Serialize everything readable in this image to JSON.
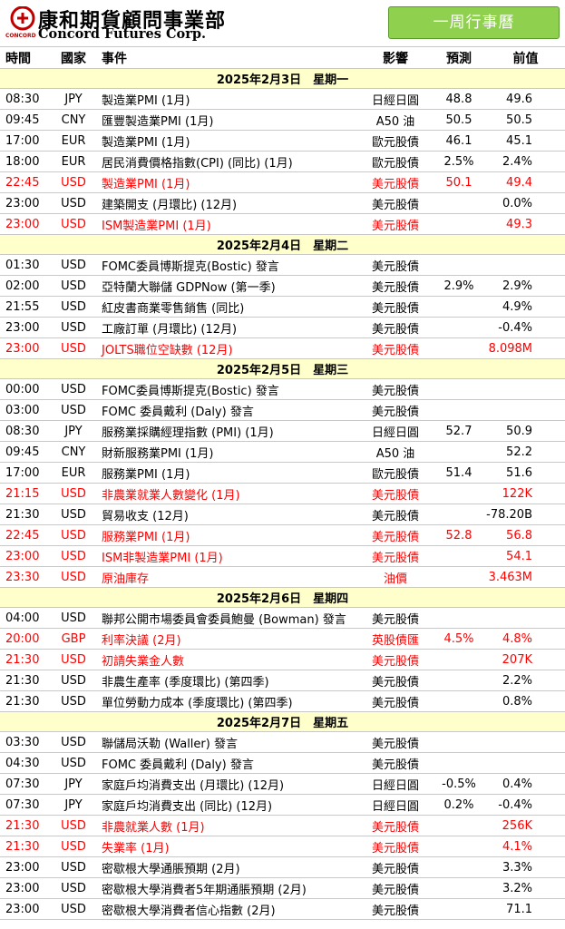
{
  "header": {
    "logo_cn": "康和期貨顧問事業部",
    "logo_en": "Concord Futures Corp.",
    "logo_small": "CONCORD",
    "banner": "一周行事曆"
  },
  "columns": [
    "時間",
    "國家",
    "事件",
    "影響",
    "預測",
    "前值"
  ],
  "days": [
    {
      "date": "2025年2月3日　星期一",
      "rows": [
        {
          "time": "08:30",
          "cur": "JPY",
          "event": "製造業PMI (1月)",
          "impact": "日經日圓",
          "fc": "48.8",
          "prev": "49.6",
          "red": false
        },
        {
          "time": "09:45",
          "cur": "CNY",
          "event": "匯豐製造業PMI (1月)",
          "impact": "A50 油",
          "fc": "50.5",
          "prev": "50.5",
          "red": false
        },
        {
          "time": "17:00",
          "cur": "EUR",
          "event": "製造業PMI (1月)",
          "impact": "歐元股債",
          "fc": "46.1",
          "prev": "45.1",
          "red": false
        },
        {
          "time": "18:00",
          "cur": "EUR",
          "event": "居民消費價格指數(CPI) (同比) (1月)",
          "impact": "歐元股債",
          "fc": "2.5%",
          "prev": "2.4%",
          "red": false
        },
        {
          "time": "22:45",
          "cur": "USD",
          "event": "製造業PMI (1月)",
          "impact": "美元股債",
          "fc": "50.1",
          "prev": "49.4",
          "red": true
        },
        {
          "time": "23:00",
          "cur": "USD",
          "event": "建築開支 (月環比) (12月)",
          "impact": "美元股債",
          "fc": "",
          "prev": "0.0%",
          "red": false
        },
        {
          "time": "23:00",
          "cur": "USD",
          "event": "ISM製造業PMI (1月)",
          "impact": "美元股債",
          "fc": "",
          "prev": "49.3",
          "red": true
        }
      ]
    },
    {
      "date": "2025年2月4日　星期二",
      "rows": [
        {
          "time": "01:30",
          "cur": "USD",
          "event": "FOMC委員博斯提克(Bostic) 發言",
          "impact": "美元股債",
          "fc": "",
          "prev": "",
          "red": false
        },
        {
          "time": "02:00",
          "cur": "USD",
          "event": "亞特蘭大聯儲 GDPNow (第一季)",
          "impact": "美元股債",
          "fc": "2.9%",
          "prev": "2.9%",
          "red": false
        },
        {
          "time": "21:55",
          "cur": "USD",
          "event": "紅皮書商業零售銷售 (同比)",
          "impact": "美元股債",
          "fc": "",
          "prev": "4.9%",
          "red": false
        },
        {
          "time": "23:00",
          "cur": "USD",
          "event": "工廠訂單 (月環比) (12月)",
          "impact": "美元股債",
          "fc": "",
          "prev": "-0.4%",
          "red": false
        },
        {
          "time": "23:00",
          "cur": "USD",
          "event": "JOLTS職位空缺數 (12月)",
          "impact": "美元股債",
          "fc": "",
          "prev": "8.098M",
          "red": true
        }
      ]
    },
    {
      "date": "2025年2月5日　星期三",
      "rows": [
        {
          "time": "00:00",
          "cur": "USD",
          "event": "FOMC委員博斯提克(Bostic) 發言",
          "impact": "美元股債",
          "fc": "",
          "prev": "",
          "red": false
        },
        {
          "time": "03:00",
          "cur": "USD",
          "event": "FOMC 委員戴利 (Daly) 發言",
          "impact": "美元股債",
          "fc": "",
          "prev": "",
          "red": false
        },
        {
          "time": "08:30",
          "cur": "JPY",
          "event": "服務業採購經理指數 (PMI) (1月)",
          "impact": "日經日圓",
          "fc": "52.7",
          "prev": "50.9",
          "red": false
        },
        {
          "time": "09:45",
          "cur": "CNY",
          "event": "財新服務業PMI (1月)",
          "impact": "A50 油",
          "fc": "",
          "prev": "52.2",
          "red": false
        },
        {
          "time": "17:00",
          "cur": "EUR",
          "event": "服務業PMI (1月)",
          "impact": "歐元股債",
          "fc": "51.4",
          "prev": "51.6",
          "red": false
        },
        {
          "time": "21:15",
          "cur": "USD",
          "event": "非農業就業人數變化 (1月)",
          "impact": "美元股債",
          "fc": "",
          "prev": "122K",
          "red": true
        },
        {
          "time": "21:30",
          "cur": "USD",
          "event": "貿易收支 (12月)",
          "impact": "美元股債",
          "fc": "",
          "prev": "-78.20B",
          "red": false
        },
        {
          "time": "22:45",
          "cur": "USD",
          "event": "服務業PMI (1月)",
          "impact": "美元股債",
          "fc": "52.8",
          "prev": "56.8",
          "red": true
        },
        {
          "time": "23:00",
          "cur": "USD",
          "event": "ISM非製造業PMI (1月)",
          "impact": "美元股債",
          "fc": "",
          "prev": "54.1",
          "red": true
        },
        {
          "time": "23:30",
          "cur": "USD",
          "event": "原油庫存",
          "impact": "油價",
          "fc": "",
          "prev": "3.463M",
          "red": true
        }
      ]
    },
    {
      "date": "2025年2月6日　星期四",
      "rows": [
        {
          "time": "04:00",
          "cur": "USD",
          "event": "聯邦公開市場委員會委員鮑曼 (Bowman) 發言",
          "impact": "美元股債",
          "fc": "",
          "prev": "",
          "red": false
        },
        {
          "time": "20:00",
          "cur": "GBP",
          "event": "利率決議 (2月)",
          "impact": "英股債匯",
          "fc": "4.5%",
          "prev": "4.8%",
          "red": true
        },
        {
          "time": "21:30",
          "cur": "USD",
          "event": "初請失業金人數",
          "impact": "美元股債",
          "fc": "",
          "prev": "207K",
          "red": true
        },
        {
          "time": "21:30",
          "cur": "USD",
          "event": "非農生產率 (季度環比) (第四季)",
          "impact": "美元股債",
          "fc": "",
          "prev": "2.2%",
          "red": false
        },
        {
          "time": "21:30",
          "cur": "USD",
          "event": "單位勞動力成本 (季度環比) (第四季)",
          "impact": "美元股債",
          "fc": "",
          "prev": "0.8%",
          "red": false
        }
      ]
    },
    {
      "date": "2025年2月7日　星期五",
      "rows": [
        {
          "time": "03:30",
          "cur": "USD",
          "event": "聯儲局沃勒 (Waller) 發言",
          "impact": "美元股債",
          "fc": "",
          "prev": "",
          "red": false
        },
        {
          "time": "04:30",
          "cur": "USD",
          "event": "FOMC 委員戴利 (Daly) 發言",
          "impact": "美元股債",
          "fc": "",
          "prev": "",
          "red": false
        },
        {
          "time": "07:30",
          "cur": "JPY",
          "event": "家庭戶均消費支出 (月環比) (12月)",
          "impact": "日經日圓",
          "fc": "-0.5%",
          "prev": "0.4%",
          "red": false
        },
        {
          "time": "07:30",
          "cur": "JPY",
          "event": "家庭戶均消費支出 (同比) (12月)",
          "impact": "日經日圓",
          "fc": "0.2%",
          "prev": "-0.4%",
          "red": false
        },
        {
          "time": "21:30",
          "cur": "USD",
          "event": "非農就業人數 (1月)",
          "impact": "美元股債",
          "fc": "",
          "prev": "256K",
          "red": true
        },
        {
          "time": "21:30",
          "cur": "USD",
          "event": "失業率 (1月)",
          "impact": "美元股債",
          "fc": "",
          "prev": "4.1%",
          "red": true
        },
        {
          "time": "23:00",
          "cur": "USD",
          "event": "密歇根大學通脹預期 (2月)",
          "impact": "美元股債",
          "fc": "",
          "prev": "3.3%",
          "red": false
        },
        {
          "time": "23:00",
          "cur": "USD",
          "event": "密歇根大學消費者5年期通脹預期 (2月)",
          "impact": "美元股債",
          "fc": "",
          "prev": "3.2%",
          "red": false
        },
        {
          "time": "23:00",
          "cur": "USD",
          "event": "密歇根大學消費者信心指數 (2月)",
          "impact": "美元股債",
          "fc": "",
          "prev": "71.1",
          "red": false
        }
      ]
    }
  ],
  "colors": {
    "banner": "#8fd14f",
    "day_band": "#ffffcc",
    "highlight": "#ff0000",
    "logo_red": "#c00000"
  }
}
